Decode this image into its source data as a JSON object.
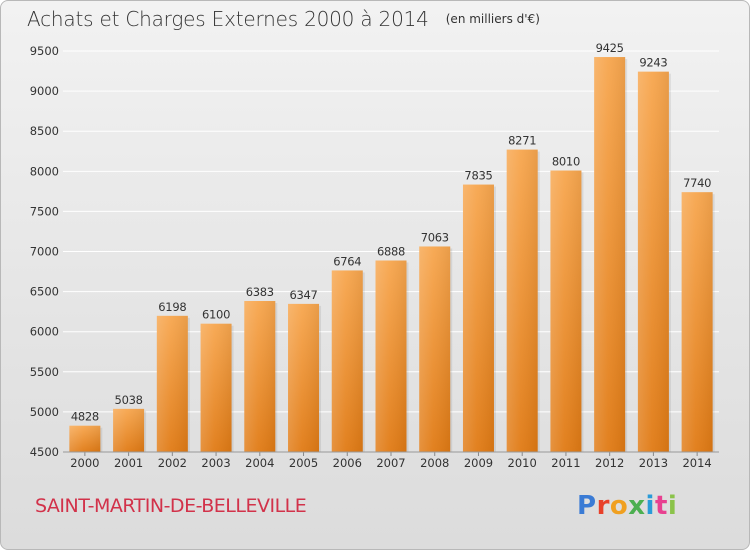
{
  "header": {
    "title": "Achats et Charges Externes 2000 à 2014",
    "unit": "(en milliers d'€)"
  },
  "footer": {
    "commune": "SAINT-MARTIN-DE-BELLEVILLE",
    "logo": "Proxiti",
    "logo_colors": [
      "#3a7bd5",
      "#e8402a",
      "#f0a020",
      "#4caf50",
      "#2a9bd8",
      "#e84090",
      "#8bc34a"
    ]
  },
  "colors": {
    "bar_top": "#f7a64e",
    "bar_bottom": "#e07a14",
    "grid": "#ffffff",
    "axis_text": "#333333"
  },
  "chart_data": {
    "type": "bar",
    "title": "Achats et Charges Externes 2000 à 2014",
    "subtitle": "(en milliers d'€)",
    "categories": [
      "2000",
      "2001",
      "2002",
      "2003",
      "2004",
      "2005",
      "2006",
      "2007",
      "2008",
      "2009",
      "2010",
      "2011",
      "2012",
      "2013",
      "2014"
    ],
    "values": [
      4828,
      5038,
      6198,
      6100,
      6383,
      6347,
      6764,
      6888,
      7063,
      7835,
      8271,
      8010,
      9425,
      9243,
      7740
    ],
    "data_labels": [
      "4828",
      "5038",
      "6198",
      "6100",
      "6383",
      "6347",
      "6764",
      "6888",
      "7063",
      "7835",
      "8271",
      "8010",
      "9425",
      "9243",
      "7740"
    ],
    "yticks": [
      4500,
      5000,
      5500,
      6000,
      6500,
      7000,
      7500,
      8000,
      8500,
      9000,
      9500
    ],
    "ytick_labels": [
      "4500",
      "5000",
      "5500",
      "6000",
      "6500",
      "7000",
      "7500",
      "8000",
      "8500",
      "9000",
      "9500"
    ],
    "ylim": [
      4500,
      9700
    ],
    "xlabel": "",
    "ylabel": "",
    "grid": true,
    "legend": "none"
  }
}
